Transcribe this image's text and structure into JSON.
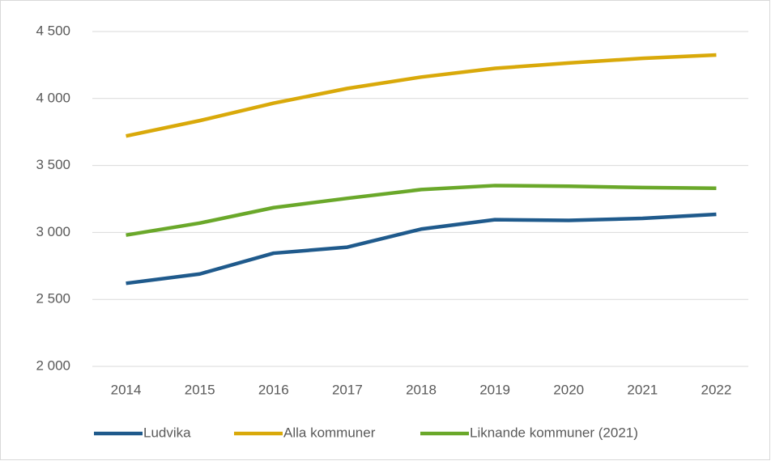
{
  "chart_data": {
    "type": "line",
    "categories": [
      "2014",
      "2015",
      "2016",
      "2017",
      "2018",
      "2019",
      "2020",
      "2021",
      "2022"
    ],
    "series": [
      {
        "name": "Ludvika",
        "color": "#1f5a8c",
        "values": [
          2620,
          2690,
          2845,
          2890,
          3025,
          3095,
          3090,
          3105,
          3135
        ]
      },
      {
        "name": "Alla kommuner",
        "color": "#d9a90a",
        "values": [
          3720,
          3835,
          3965,
          4075,
          4160,
          4225,
          4265,
          4300,
          4325
        ]
      },
      {
        "name": "Liknande kommuner (2021)",
        "color": "#6aa82a",
        "values": [
          2980,
          3070,
          3185,
          3255,
          3320,
          3350,
          3345,
          3335,
          3330
        ]
      }
    ],
    "ylim": [
      2000,
      4500
    ],
    "yticks": [
      {
        "value": 2000,
        "label": "2 000"
      },
      {
        "value": 2500,
        "label": "2 500"
      },
      {
        "value": 3000,
        "label": "3 000"
      },
      {
        "value": 3500,
        "label": "3 500"
      },
      {
        "value": 4000,
        "label": "4 000"
      },
      {
        "value": 4500,
        "label": "4 500"
      }
    ],
    "grid": true,
    "legend": "bottom"
  }
}
